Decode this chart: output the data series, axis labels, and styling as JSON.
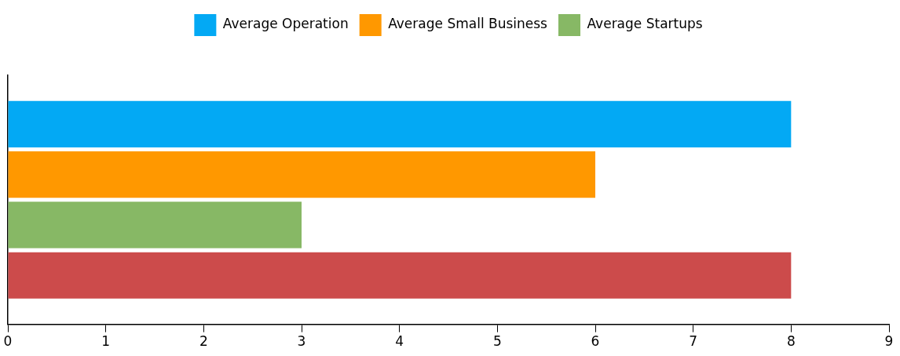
{
  "chart_data": {
    "type": "bar",
    "orientation": "horizontal",
    "categories": [
      null
    ],
    "series": [
      {
        "name": "Average Operation",
        "color": "#03a9f4",
        "values": [
          8
        ]
      },
      {
        "name": "Average Small Business",
        "color": "#ff9800",
        "values": [
          6
        ]
      },
      {
        "name": "Average Startups",
        "color": "#87b865",
        "values": [
          3
        ]
      },
      {
        "color": "#cc4b4b",
        "values": [
          8
        ]
      }
    ],
    "xlim": [
      0,
      9
    ],
    "xticks": [
      0,
      1,
      2,
      3,
      4,
      5,
      6,
      7,
      8,
      9
    ],
    "grid": false,
    "legend": "top",
    "tick_labels": "x"
  }
}
